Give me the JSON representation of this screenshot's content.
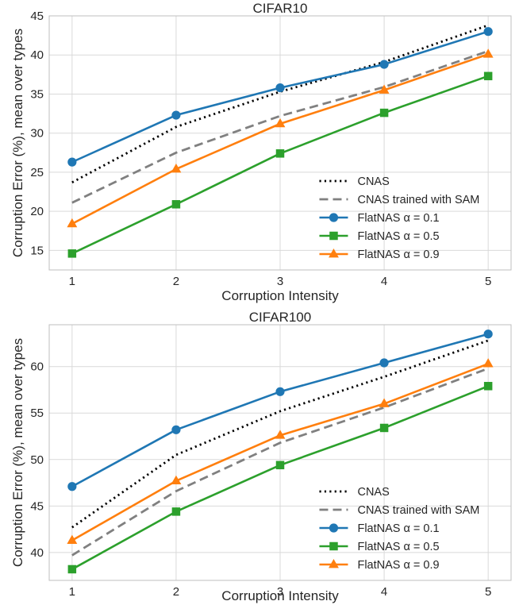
{
  "chart_data": [
    {
      "type": "line",
      "title": "CIFAR10",
      "xlabel": "Corruption Intensity",
      "ylabel": "Corruption Error (%), mean over types",
      "x": [
        1,
        2,
        3,
        4,
        5
      ],
      "xlim": [
        0.78,
        5.22
      ],
      "ylim": [
        12.5,
        45
      ],
      "yticks": [
        15,
        20,
        25,
        30,
        35,
        40,
        45
      ],
      "grid": true,
      "legend_position": "lower-right",
      "series": [
        {
          "name": "CNAS",
          "values": [
            23.7,
            30.8,
            35.3,
            39.1,
            43.8
          ],
          "color": "#000000",
          "style": "dotted",
          "marker": "none"
        },
        {
          "name": "CNAS  trained with SAM",
          "values": [
            21.1,
            27.5,
            32.2,
            35.9,
            40.5
          ],
          "color": "#808080",
          "style": "dashed",
          "marker": "none"
        },
        {
          "name": "FlatNAS α = 0.1",
          "values": [
            26.3,
            32.3,
            35.8,
            38.8,
            43.0
          ],
          "color": "#1f77b4",
          "style": "solid",
          "marker": "circle"
        },
        {
          "name": "FlatNAS α = 0.5",
          "values": [
            14.6,
            20.9,
            27.4,
            32.6,
            37.3
          ],
          "color": "#2ca02c",
          "style": "solid",
          "marker": "square"
        },
        {
          "name": "FlatNAS α = 0.9",
          "values": [
            18.4,
            25.4,
            31.2,
            35.5,
            40.1
          ],
          "color": "#ff7f0e",
          "style": "solid",
          "marker": "triangle"
        }
      ]
    },
    {
      "type": "line",
      "title": "CIFAR100",
      "xlabel": "Corruption Intensity",
      "ylabel": "Corruption Error (%), mean over types",
      "x": [
        1,
        2,
        3,
        4,
        5
      ],
      "xlim": [
        0.78,
        5.22
      ],
      "ylim": [
        37,
        64.5
      ],
      "yticks": [
        40,
        45,
        50,
        55,
        60
      ],
      "grid": true,
      "legend_position": "lower-right",
      "series": [
        {
          "name": "CNAS",
          "values": [
            42.7,
            50.5,
            55.2,
            58.9,
            62.8
          ],
          "color": "#000000",
          "style": "dotted",
          "marker": "none"
        },
        {
          "name": "CNAS  trained with SAM",
          "values": [
            39.7,
            46.6,
            51.8,
            55.6,
            59.8
          ],
          "color": "#808080",
          "style": "dashed",
          "marker": "none"
        },
        {
          "name": "FlatNAS α = 0.1",
          "values": [
            47.1,
            53.2,
            57.3,
            60.4,
            63.5
          ],
          "color": "#1f77b4",
          "style": "solid",
          "marker": "circle"
        },
        {
          "name": "FlatNAS α = 0.5",
          "values": [
            38.2,
            44.4,
            49.4,
            53.4,
            57.9
          ],
          "color": "#2ca02c",
          "style": "solid",
          "marker": "square"
        },
        {
          "name": "FlatNAS α = 0.9",
          "values": [
            41.3,
            47.7,
            52.6,
            56.0,
            60.3
          ],
          "color": "#ff7f0e",
          "style": "solid",
          "marker": "triangle"
        }
      ]
    }
  ]
}
